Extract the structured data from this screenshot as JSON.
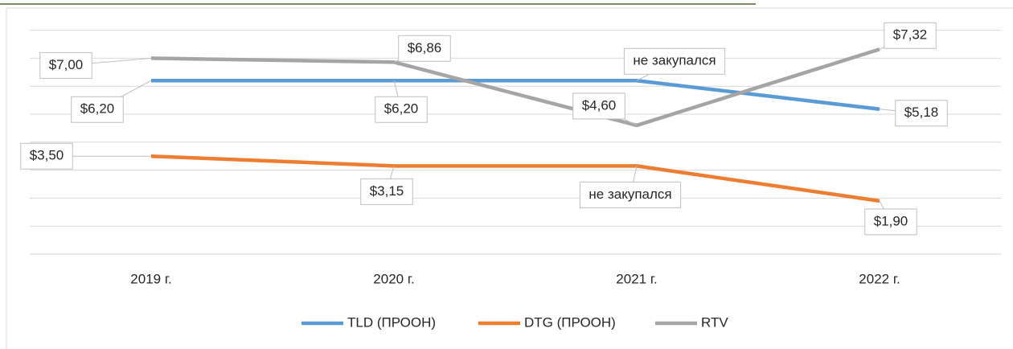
{
  "chart_data": {
    "type": "line",
    "categories": [
      "2019 г.",
      "2020 г.",
      "2021 г.",
      "2022 г."
    ],
    "series": [
      {
        "name": "TLD (ПРООН)",
        "color": "#5b9bd5",
        "values": [
          6.2,
          6.2,
          6.2,
          5.18
        ],
        "value_labels": [
          "$6,20",
          "$6,20",
          "не закупался",
          "$5,18"
        ]
      },
      {
        "name": "DTG (ПРООН)",
        "color": "#ed7d31",
        "values": [
          3.5,
          3.15,
          3.15,
          1.9
        ],
        "value_labels": [
          "$3,50",
          "$3,15",
          "не закупался",
          "$1,90"
        ]
      },
      {
        "name": "RTV",
        "color": "#a5a5a5",
        "values": [
          7.0,
          6.86,
          4.6,
          7.32
        ],
        "value_labels": [
          "$7,00",
          "$6,86",
          "$4,60",
          "$7,32"
        ]
      }
    ],
    "ylim": [
      0,
      8
    ],
    "yticks": [
      0,
      1,
      2,
      3,
      4,
      5,
      6,
      7,
      8
    ],
    "grid": true,
    "legend": "bottom"
  }
}
